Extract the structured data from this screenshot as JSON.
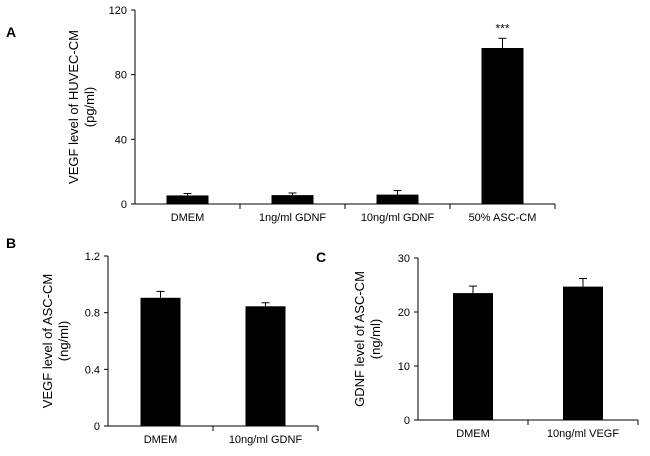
{
  "chart_data": [
    {
      "id": "A",
      "panel_label": "A",
      "type": "bar",
      "title": "",
      "ylabel_lines": [
        "VEGF level of HUVEC-CM",
        "(pg/ml)"
      ],
      "xlabel": "",
      "categories": [
        "DMEM",
        "1ng/ml GDNF",
        "10ng/ml GDNF",
        "50% ASC-CM"
      ],
      "values": [
        5.3,
        5.5,
        5.8,
        96.5
      ],
      "errors": [
        1.2,
        1.3,
        2.5,
        6
      ],
      "ylim": [
        0,
        120
      ],
      "yticks": [
        "0",
        "40",
        "80",
        "120"
      ],
      "annotations": [
        {
          "category": "50% ASC-CM",
          "text": "***"
        }
      ],
      "grid": false,
      "bar_color": "#000000"
    },
    {
      "id": "B",
      "panel_label": "B",
      "type": "bar",
      "title": "",
      "ylabel_lines": [
        "VEGF  level  of ASC-CM",
        "(ng/ml)"
      ],
      "xlabel": "",
      "categories": [
        "DMEM",
        "10ng/ml GDNF"
      ],
      "values": [
        0.905,
        0.845
      ],
      "errors": [
        0.045,
        0.025
      ],
      "ylim": [
        0,
        1.2
      ],
      "yticks": [
        "0",
        "0.4",
        "0.8",
        "1.2"
      ],
      "annotations": [],
      "grid": false,
      "bar_color": "#000000"
    },
    {
      "id": "C",
      "panel_label": "C",
      "type": "bar",
      "title": "",
      "ylabel_lines": [
        "GDNF level of ASC-CM",
        "(ng/ml)"
      ],
      "xlabel": "",
      "categories": [
        "DMEM",
        "10ng/ml VEGF"
      ],
      "values": [
        23.5,
        24.7
      ],
      "errors": [
        1.3,
        1.5
      ],
      "ylim": [
        0,
        30
      ],
      "yticks": [
        "0",
        "10",
        "20",
        "30"
      ],
      "annotations": [],
      "grid": false,
      "bar_color": "#000000"
    }
  ]
}
